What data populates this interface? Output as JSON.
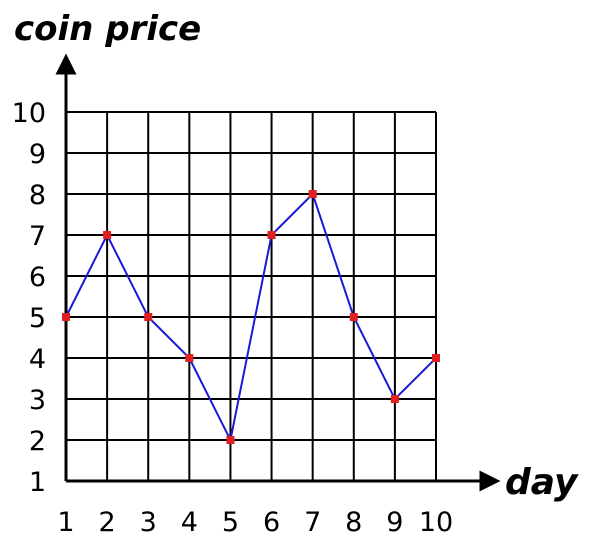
{
  "chart_data": {
    "type": "line",
    "title": "",
    "xlabel": "day",
    "ylabel": "coin price",
    "x": [
      1,
      2,
      3,
      4,
      5,
      6,
      7,
      8,
      9,
      10
    ],
    "values": [
      5,
      7,
      5,
      4,
      2,
      7,
      8,
      5,
      3,
      4
    ],
    "x_ticks": [
      1,
      2,
      3,
      4,
      5,
      6,
      7,
      8,
      9,
      10
    ],
    "y_ticks": [
      1,
      2,
      3,
      4,
      5,
      6,
      7,
      8,
      9,
      10
    ],
    "xlim": [
      1,
      10
    ],
    "ylim": [
      1,
      10
    ],
    "grid": true,
    "legend": "none",
    "colors": {
      "line": "#1a1ad6",
      "marker": "#e02020",
      "grid": "#000000"
    }
  }
}
